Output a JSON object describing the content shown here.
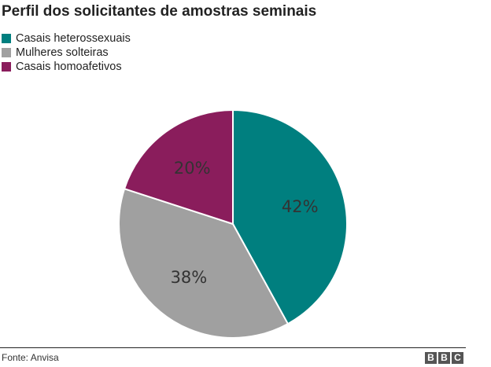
{
  "chart_data": {
    "type": "pie",
    "title": "Perfil dos solicitantes de amostras seminais",
    "categories": [
      "Casais heterossexuais",
      "Mulheres solteiras",
      "Casais homoafetivos"
    ],
    "values": [
      42,
      38,
      20
    ],
    "value_labels": [
      "42%",
      "38%",
      "20%"
    ],
    "colors": [
      "#007f7f",
      "#a0a0a0",
      "#8a1d5c"
    ],
    "legend_position": "top-left"
  },
  "source": "Fonte: Anvisa",
  "logo": [
    "B",
    "B",
    "C"
  ]
}
